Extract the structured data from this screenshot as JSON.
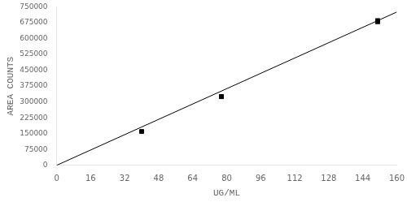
{
  "chart_data": {
    "type": "scatter",
    "xlabel": "UG/ML",
    "ylabel": "AREA COUNTS",
    "series": [
      {
        "type": "line",
        "x": [
          0,
          160
        ],
        "values": [
          0,
          725328
        ],
        "color": "#000000",
        "line_style": "solid"
      },
      {
        "type": "scatter",
        "x": [
          40,
          77.5,
          151
        ],
        "values": [
          160000,
          325000,
          682000
        ],
        "errors": [
          3000,
          9000,
          12000
        ],
        "color": "#000000",
        "marker": "square"
      }
    ],
    "xlim": [
      0,
      160
    ],
    "ylim": [
      0,
      750000
    ],
    "xticks": [
      0,
      16,
      32,
      48,
      64,
      80,
      96,
      112,
      128,
      144,
      160
    ],
    "yticks": [
      0,
      75000,
      150000,
      225000,
      300000,
      375000,
      450000,
      525000,
      600000,
      675000,
      750000
    ],
    "grid": false
  }
}
